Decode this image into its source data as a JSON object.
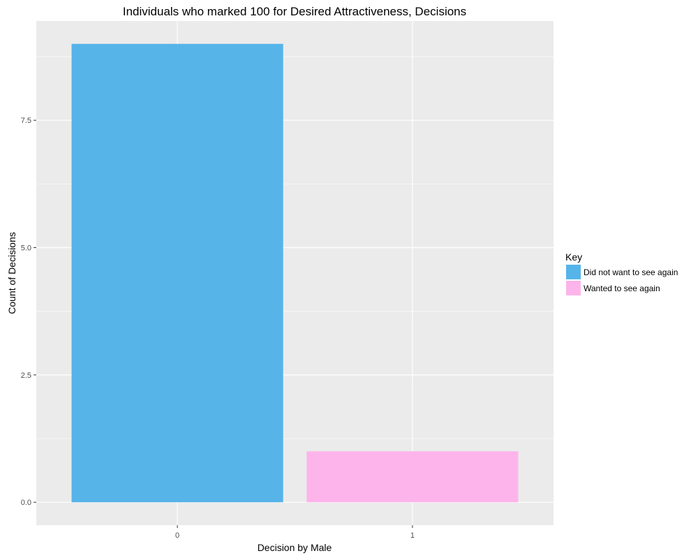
{
  "chart_data": {
    "type": "bar",
    "title": "Individuals who marked 100 for Desired Attractiveness, Decisions",
    "xlabel": "Decision by Male",
    "ylabel": "Count of Decisions",
    "categories": [
      "0",
      "1"
    ],
    "values": [
      9,
      1
    ],
    "bar_colors": [
      "#56B4E9",
      "#FDB4EA"
    ],
    "ylim": [
      -0.45,
      9.45
    ],
    "yticks": [
      0.0,
      2.5,
      5.0,
      7.5
    ],
    "ytick_labels": [
      "0.0",
      "2.5",
      "5.0",
      "7.5"
    ],
    "grid": true,
    "panel_background": "#EBEBEB",
    "grid_color": "#FFFFFF",
    "legend": {
      "title": "Key",
      "placement": "right",
      "entries": [
        {
          "label": "Did not want to see again",
          "color": "#56B4E9"
        },
        {
          "label": "Wanted to see again",
          "color": "#FDB4EA"
        }
      ]
    }
  }
}
